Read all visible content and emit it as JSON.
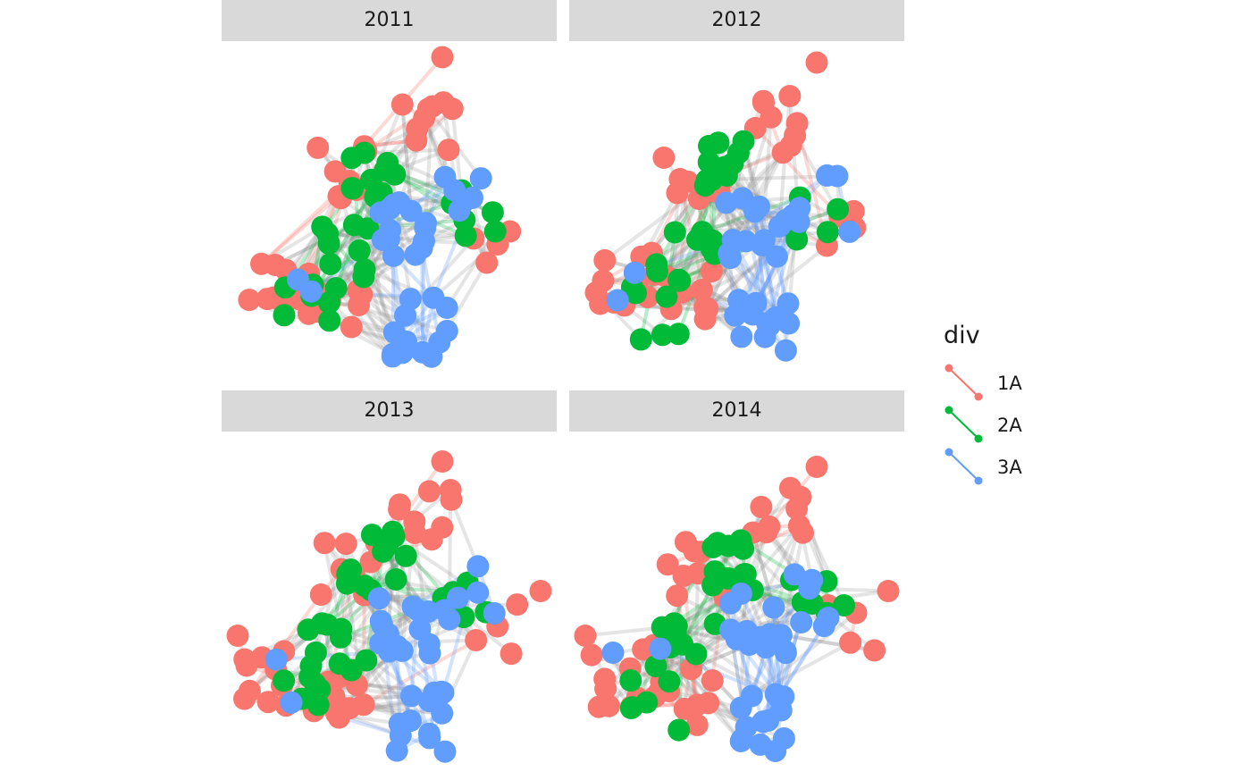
{
  "facets": [
    {
      "label": "2011",
      "seed": 11
    },
    {
      "label": "2012",
      "seed": 12
    },
    {
      "label": "2013",
      "seed": 13
    },
    {
      "label": "2014",
      "seed": 14
    }
  ],
  "legend": {
    "title": "div",
    "items": [
      {
        "label": "1A",
        "color": "#f8766d"
      },
      {
        "label": "2A",
        "color": "#00ba38"
      },
      {
        "label": "3A",
        "color": "#619cff"
      }
    ]
  },
  "edge_color": "#888888"
}
